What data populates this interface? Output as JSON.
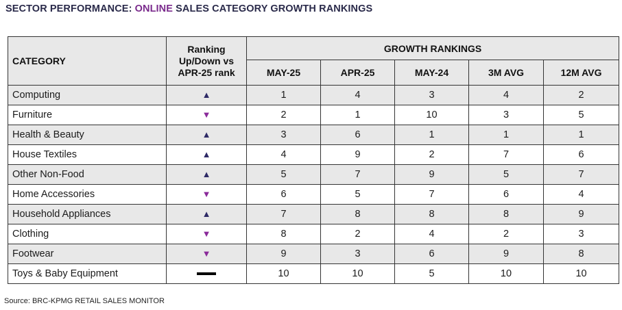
{
  "title": {
    "prefix": "SECTOR PERFORMANCE: ",
    "accent": "ONLINE",
    "suffix": " SALES CATEGORY GROWTH RANKINGS"
  },
  "headers": {
    "category": "CATEGORY",
    "ranking_line1": "Ranking",
    "ranking_line2": "Up/Down vs",
    "ranking_line3": "APR-25 rank",
    "group": "GROWTH RANKINGS",
    "cols": [
      "MAY-25",
      "APR-25",
      "MAY-24",
      "3M AVG",
      "12M AVG"
    ]
  },
  "rows": [
    {
      "category": "Computing",
      "trend": "up",
      "v": [
        "1",
        "4",
        "3",
        "4",
        "2"
      ]
    },
    {
      "category": "Furniture",
      "trend": "down",
      "v": [
        "2",
        "1",
        "10",
        "3",
        "5"
      ]
    },
    {
      "category": "Health & Beauty",
      "trend": "up",
      "v": [
        "3",
        "6",
        "1",
        "1",
        "1"
      ]
    },
    {
      "category": "House Textiles",
      "trend": "up",
      "v": [
        "4",
        "9",
        "2",
        "7",
        "6"
      ]
    },
    {
      "category": "Other Non-Food",
      "trend": "up",
      "v": [
        "5",
        "7",
        "9",
        "5",
        "7"
      ]
    },
    {
      "category": "Home Accessories",
      "trend": "down",
      "v": [
        "6",
        "5",
        "7",
        "6",
        "4"
      ]
    },
    {
      "category": "Household Appliances",
      "trend": "up",
      "v": [
        "7",
        "8",
        "8",
        "8",
        "9"
      ]
    },
    {
      "category": "Clothing",
      "trend": "down",
      "v": [
        "8",
        "2",
        "4",
        "2",
        "3"
      ]
    },
    {
      "category": "Footwear",
      "trend": "down",
      "v": [
        "9",
        "3",
        "6",
        "9",
        "8"
      ]
    },
    {
      "category": "Toys & Baby Equipment",
      "trend": "flat",
      "v": [
        "10",
        "10",
        "5",
        "10",
        "10"
      ]
    }
  ],
  "icons": {
    "up": "up-triangle-icon",
    "down": "down-triangle-icon",
    "flat": "flat-dash-icon"
  },
  "colors": {
    "up": "#2e2a66",
    "down": "#8a2a9a",
    "accent": "#7a2a8c",
    "shade": "#e8e8e8"
  },
  "source": "Source: BRC-KPMG RETAIL SALES MONITOR"
}
